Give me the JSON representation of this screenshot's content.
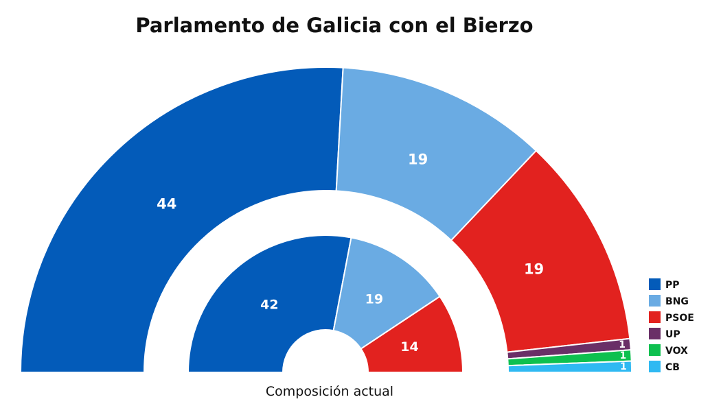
{
  "chart_data": {
    "type": "parliament-donut",
    "title": "Parlamento de Galicia con el Bierzo",
    "parties": [
      {
        "name": "PP",
        "color": "#035bb9"
      },
      {
        "name": "BNG",
        "color": "#6aabe3"
      },
      {
        "name": "PSOE",
        "color": "#e2221f"
      },
      {
        "name": "UP",
        "color": "#6a2f67"
      },
      {
        "name": "VOX",
        "color": "#0ec04f"
      },
      {
        "name": "CB",
        "color": "#2fb9f2"
      }
    ],
    "series": [
      {
        "name": "",
        "values": [
          44,
          19,
          19,
          1,
          1,
          1
        ]
      },
      {
        "name": "Composición actual",
        "values": [
          42,
          19,
          14
        ]
      }
    ],
    "caption": "Composición actual",
    "legend_position": "bottom-right"
  }
}
